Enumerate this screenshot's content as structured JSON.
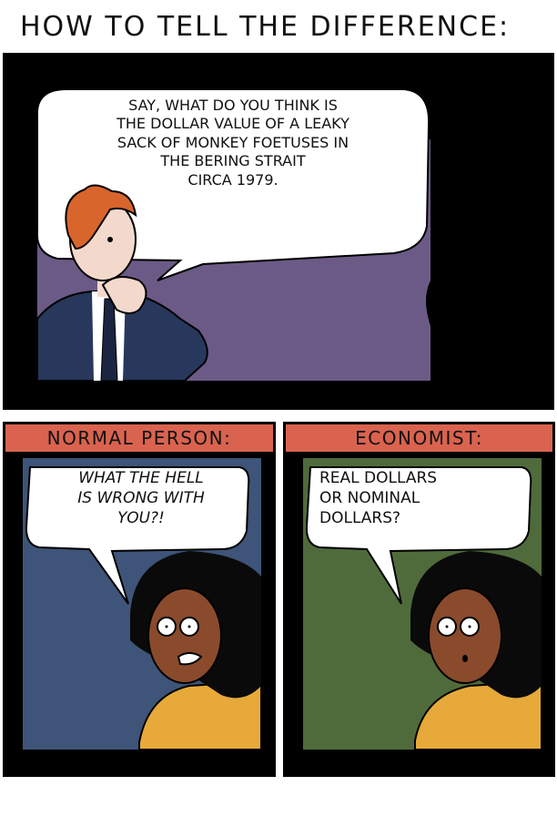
{
  "title": "HOW TO TELL THE DIFFERENCE:",
  "panels": {
    "top": {
      "speech": "SAY, WHAT DO YOU THINK IS\nTHE DOLLAR VALUE OF A LEAKY\nSACK OF MONKEY FOETUSES IN\nTHE BERING STRAIT\nCIRCA 1979."
    },
    "normal": {
      "caption": "NORMAL PERSON:",
      "speech": "WHAT THE HELL\nIS WRONG WITH\nYOU?!"
    },
    "economist": {
      "caption": "ECONOMIST:",
      "speech": "REAL DOLLARS\nOR NOMINAL\nDOLLARS?"
    }
  },
  "colors": {
    "top_background": "#6b5a86",
    "normal_background": "#3e5478",
    "economist_background": "#4f6b3b",
    "caption_background": "#d9634f",
    "shirt_yellow": "#e7a93a",
    "skin_dark": "#8a4a2c",
    "hair_red": "#d8652c",
    "suit_navy": "#28385c"
  }
}
